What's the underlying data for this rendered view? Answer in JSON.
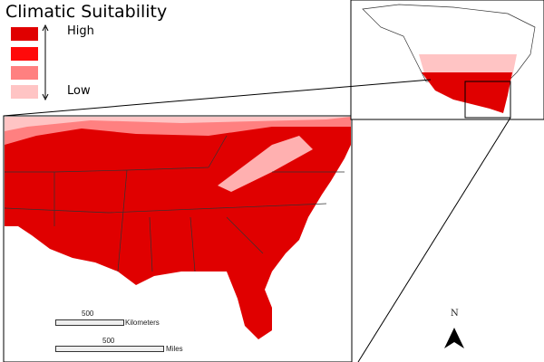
{
  "legend": {
    "title": "Climatic Suitability",
    "high_label": "High",
    "low_label": "Low",
    "classes": [
      {
        "level": "high",
        "color": "#e00000"
      },
      {
        "level": "medium-high",
        "color": "#ff0a0a"
      },
      {
        "level": "medium-low",
        "color": "#ff8080"
      },
      {
        "level": "low",
        "color": "#ffc4c4"
      }
    ]
  },
  "scale_bars": [
    {
      "value": "500",
      "unit": "Kilometers"
    },
    {
      "value": "500",
      "unit": "Miles"
    }
  ],
  "north_arrow": {
    "label": "N"
  }
}
